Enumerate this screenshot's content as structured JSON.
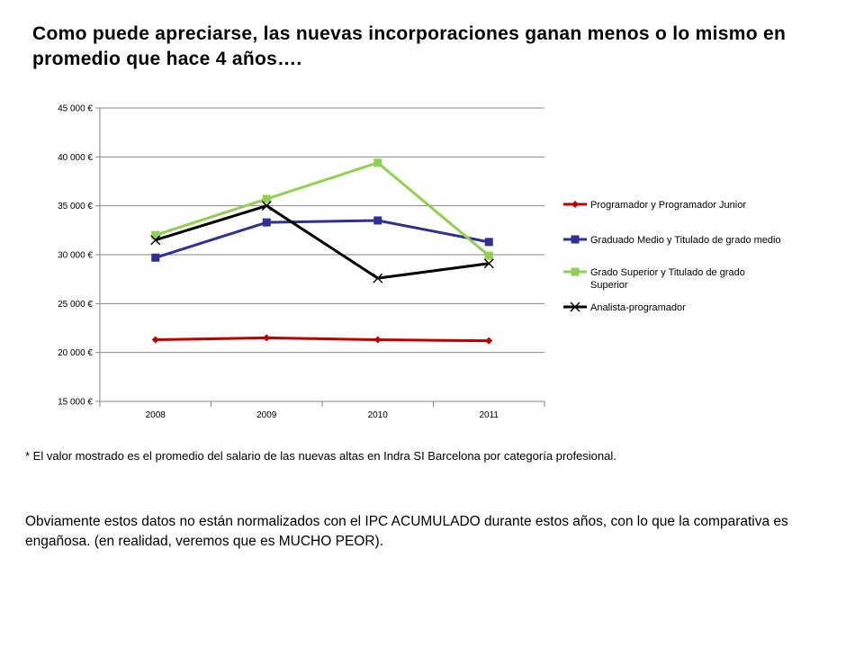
{
  "title": "Como puede apreciarse, las nuevas incorporaciones ganan menos o lo mismo en promedio que hace 4 años….",
  "chart_data": {
    "type": "line",
    "categories": [
      "2008",
      "2009",
      "2010",
      "2011"
    ],
    "ylim": [
      15000,
      45000
    ],
    "yticks": [
      15000,
      20000,
      25000,
      30000,
      35000,
      40000,
      45000
    ],
    "ytick_labels": [
      "15 000 €",
      "20 000 €",
      "25 000 €",
      "30 000 €",
      "35 000 €",
      "40 000 €",
      "45 000 €"
    ],
    "grid": true,
    "legend_position": "right",
    "series": [
      {
        "name": "Programador y Programador Junior",
        "values": [
          21300,
          21500,
          21300,
          21200
        ],
        "color": "#c00000",
        "marker": "diamond"
      },
      {
        "name": "Graduado Medio y Titulado de grado medio",
        "values": [
          29700,
          33300,
          33500,
          31300
        ],
        "color": "#2e3192",
        "marker": "square"
      },
      {
        "name": "Grado Superior y Titulado de grado Superior",
        "values": [
          32000,
          35700,
          39400,
          29900
        ],
        "color": "#92d050",
        "marker": "square"
      },
      {
        "name": "Analista-programador",
        "values": [
          31500,
          35000,
          27600,
          29100
        ],
        "color": "#000000",
        "marker": "x"
      }
    ]
  },
  "note": "* El valor mostrado es el promedio del salario de las nuevas altas en Indra SI Barcelona por categoría profesional.",
  "paragraph": "Obviamente estos datos no están normalizados con el IPC ACUMULADO durante estos años, con lo que la comparativa es engañosa. (en realidad, veremos que es MUCHO PEOR)."
}
